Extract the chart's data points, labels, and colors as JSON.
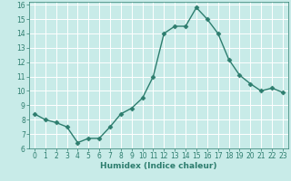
{
  "title": "",
  "xlabel": "Humidex (Indice chaleur)",
  "ylabel": "",
  "x": [
    0,
    1,
    2,
    3,
    4,
    5,
    6,
    7,
    8,
    9,
    10,
    11,
    12,
    13,
    14,
    15,
    16,
    17,
    18,
    19,
    20,
    21,
    22,
    23
  ],
  "y": [
    8.4,
    8.0,
    7.8,
    7.5,
    6.4,
    6.7,
    6.7,
    7.5,
    8.4,
    8.8,
    9.5,
    11.0,
    14.0,
    14.5,
    14.5,
    15.8,
    15.0,
    14.0,
    12.2,
    11.1,
    10.5,
    10.0,
    10.2,
    9.9
  ],
  "line_color": "#2d7d6e",
  "marker": "D",
  "marker_size": 2.5,
  "bg_color": "#c8ebe8",
  "grid_color": "#ffffff",
  "grid_minor_color": "#dff0ee",
  "xlim": [
    -0.5,
    23.5
  ],
  "ylim": [
    6,
    16.2
  ],
  "yticks": [
    6,
    7,
    8,
    9,
    10,
    11,
    12,
    13,
    14,
    15,
    16
  ],
  "xticks": [
    0,
    1,
    2,
    3,
    4,
    5,
    6,
    7,
    8,
    9,
    10,
    11,
    12,
    13,
    14,
    15,
    16,
    17,
    18,
    19,
    20,
    21,
    22,
    23
  ],
  "tick_fontsize": 5.5,
  "xlabel_fontsize": 6.5,
  "linewidth": 1.0
}
